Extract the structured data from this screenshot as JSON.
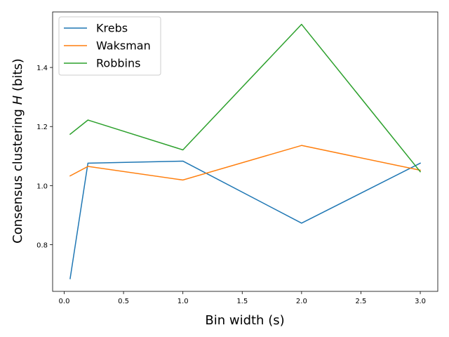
{
  "chart_data": {
    "type": "line",
    "xlabel": "Bin width (s)",
    "ylabel_prefix": "Consensus clustering ",
    "ylabel_var": "H",
    "ylabel_suffix": " (bits)",
    "x": [
      0.05,
      0.2,
      1.0,
      2.0,
      3.0
    ],
    "xlim": [
      -0.0975,
      3.1475
    ],
    "ylim": [
      0.642,
      1.588
    ],
    "xticks": [
      0.0,
      0.5,
      1.0,
      1.5,
      2.0,
      2.5,
      3.0
    ],
    "xtick_labels": [
      "0.0",
      "0.5",
      "1.0",
      "1.5",
      "2.0",
      "2.5",
      "3.0"
    ],
    "yticks": [
      0.8,
      1.0,
      1.2,
      1.4
    ],
    "ytick_labels": [
      "0.8",
      "1.0",
      "1.2",
      "1.4"
    ],
    "grid": false,
    "legend_position": "top-left",
    "series": [
      {
        "name": "Krebs",
        "color": "#1f77b4",
        "values": [
          0.685,
          1.076,
          1.083,
          0.873,
          1.076
        ]
      },
      {
        "name": "Waksman",
        "color": "#ff7f0e",
        "values": [
          1.033,
          1.065,
          1.019,
          1.136,
          1.052
        ]
      },
      {
        "name": "Robbins",
        "color": "#2ca02c",
        "values": [
          1.174,
          1.222,
          1.121,
          1.546,
          1.047
        ]
      }
    ]
  }
}
